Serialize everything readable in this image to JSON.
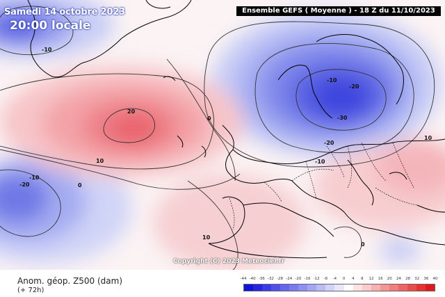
{
  "header": {
    "date": "Samedi 14 octobre 2023",
    "time": "20:00 locale",
    "run_info": "Ensemble GEFS  ( Moyenne )  - 18 Z du 11/10/2023"
  },
  "footer": {
    "copyright": "Copyright (C) 2023 Meteociel.fr",
    "variable": "Anom. géop. Z500 (dam)",
    "lead_time": "(+ 72h)"
  },
  "contour_labels": [
    "-10",
    "20",
    "0",
    "-10",
    "-20",
    "-30",
    "-20",
    "-10",
    "-20",
    "-10",
    "10",
    "0",
    "10",
    "0",
    "10"
  ],
  "legend": {
    "ticks": [
      "-44",
      "-40",
      "-36",
      "-32",
      "-28",
      "-24",
      "-20",
      "-16",
      "-12",
      "-8",
      "-4",
      "0",
      "4",
      "8",
      "12",
      "16",
      "20",
      "24",
      "28",
      "32",
      "36",
      "40"
    ],
    "colors": [
      "#1212d8",
      "#2525e0",
      "#3a3ae6",
      "#5050ea",
      "#6565ee",
      "#7a7af0",
      "#8f8ff3",
      "#a5a5f6",
      "#bbbbf9",
      "#d2d2fb",
      "#e8e8fd",
      "#ffffff",
      "#fde3e3",
      "#fbcaca",
      "#f8b0b0",
      "#f59696",
      "#f27d7d",
      "#ef6464",
      "#ec4b4b",
      "#e83232",
      "#e01a1a"
    ]
  }
}
